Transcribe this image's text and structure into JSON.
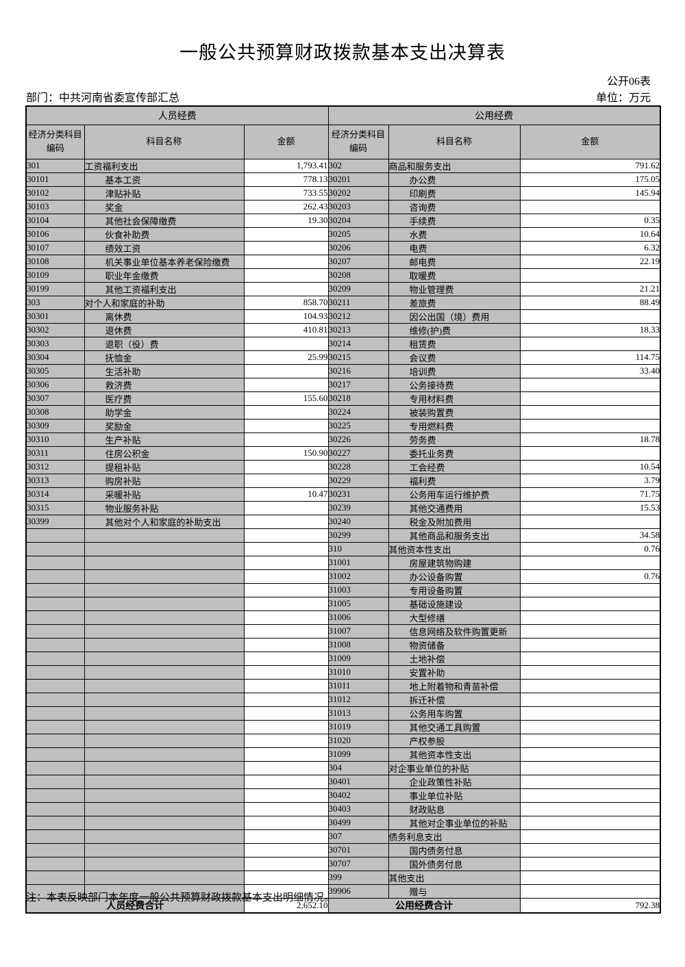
{
  "page": {
    "title": "一般公共预算财政拨款基本支出决算表",
    "form_number": "公开06表",
    "department": "部门：中共河南省委宣传部汇总",
    "unit": "单位：万元",
    "note": "注：本表反映部门本年度一般公共预算财政拨款基本支出明细情况。"
  },
  "colors": {
    "cell_gray": "#c0c0c0",
    "border": "#000000",
    "page_background": "#ffffff"
  },
  "table": {
    "groups": {
      "left": "人员经费",
      "right": "公用经费"
    },
    "headers": {
      "code_line1": "经济分类科目",
      "code_line2": "编码",
      "name": "科目名称",
      "amount": "金额"
    },
    "rows": [
      [
        "301",
        "工资福利支出",
        "1,793.41",
        "302",
        "商品和服务支出",
        "791.62"
      ],
      [
        "30101",
        "基本工资",
        "778.13",
        "30201",
        "办公费",
        "175.05"
      ],
      [
        "30102",
        "津贴补贴",
        "733.55",
        "30202",
        "印刷费",
        "145.94"
      ],
      [
        "30103",
        "奖金",
        "262.43",
        "30203",
        "咨询费",
        ""
      ],
      [
        "30104",
        "其他社会保障缴费",
        "19.30",
        "30204",
        "手续费",
        "0.35"
      ],
      [
        "30106",
        "伙食补助费",
        "",
        "30205",
        "水费",
        "10.64"
      ],
      [
        "30107",
        "绩效工资",
        "",
        "30206",
        "电费",
        "6.32"
      ],
      [
        "30108",
        "机关事业单位基本养老保险缴费",
        "",
        "30207",
        "邮电费",
        "22.19"
      ],
      [
        "30109",
        "职业年金缴费",
        "",
        "30208",
        "取暖费",
        ""
      ],
      [
        "30199",
        "其他工资福利支出",
        "",
        "30209",
        "物业管理费",
        "21.21"
      ],
      [
        "303",
        "对个人和家庭的补助",
        "858.70",
        "30211",
        "差旅费",
        "88.49"
      ],
      [
        "30301",
        "离休费",
        "104.93",
        "30212",
        "因公出国（境）费用",
        ""
      ],
      [
        "30302",
        "退休费",
        "410.81",
        "30213",
        "维修(护)费",
        "18.33"
      ],
      [
        "30303",
        "退职（役）费",
        "",
        "30214",
        "租赁费",
        ""
      ],
      [
        "30304",
        "抚恤金",
        "25.99",
        "30215",
        "会议费",
        "114.75"
      ],
      [
        "30305",
        "生活补助",
        "",
        "30216",
        "培训费",
        "33.40"
      ],
      [
        "30306",
        "救济费",
        "",
        "30217",
        "公务接待费",
        ""
      ],
      [
        "30307",
        "医疗费",
        "155.60",
        "30218",
        "专用材料费",
        ""
      ],
      [
        "30308",
        "助学金",
        "",
        "30224",
        "被装购置费",
        ""
      ],
      [
        "30309",
        "奖励金",
        "",
        "30225",
        "专用燃料费",
        ""
      ],
      [
        "30310",
        "生产补贴",
        "",
        "30226",
        "劳务费",
        "18.78"
      ],
      [
        "30311",
        "住房公积金",
        "150.90",
        "30227",
        "委托业务费",
        ""
      ],
      [
        "30312",
        "提租补贴",
        "",
        "30228",
        "工会经费",
        "10.54"
      ],
      [
        "30313",
        "购房补贴",
        "",
        "30229",
        "福利费",
        "3.79"
      ],
      [
        "30314",
        "采暖补贴",
        "10.47",
        "30231",
        "公务用车运行维护费",
        "71.75"
      ],
      [
        "30315",
        "物业服务补贴",
        "",
        "30239",
        "其他交通费用",
        "15.53"
      ],
      [
        "30399",
        "其他对个人和家庭的补助支出",
        "",
        "30240",
        "税金及附加费用",
        ""
      ],
      [
        "",
        "",
        "",
        "30299",
        "其他商品和服务支出",
        "34.58"
      ],
      [
        "",
        "",
        "",
        "310",
        "其他资本性支出",
        "0.76"
      ],
      [
        "",
        "",
        "",
        "31001",
        "房屋建筑物购建",
        ""
      ],
      [
        "",
        "",
        "",
        "31002",
        "办公设备购置",
        "0.76"
      ],
      [
        "",
        "",
        "",
        "31003",
        "专用设备购置",
        ""
      ],
      [
        "",
        "",
        "",
        "31005",
        "基础设施建设",
        ""
      ],
      [
        "",
        "",
        "",
        "31006",
        "大型修缮",
        ""
      ],
      [
        "",
        "",
        "",
        "31007",
        "信息网络及软件购置更新",
        ""
      ],
      [
        "",
        "",
        "",
        "31008",
        "物资储备",
        ""
      ],
      [
        "",
        "",
        "",
        "31009",
        "土地补偿",
        ""
      ],
      [
        "",
        "",
        "",
        "31010",
        "安置补助",
        ""
      ],
      [
        "",
        "",
        "",
        "31011",
        "地上附着物和青苗补偿",
        ""
      ],
      [
        "",
        "",
        "",
        "31012",
        "拆迁补偿",
        ""
      ],
      [
        "",
        "",
        "",
        "31013",
        "公务用车购置",
        ""
      ],
      [
        "",
        "",
        "",
        "31019",
        "其他交通工具购置",
        ""
      ],
      [
        "",
        "",
        "",
        "31020",
        "产权参股",
        ""
      ],
      [
        "",
        "",
        "",
        "31099",
        "其他资本性支出",
        ""
      ],
      [
        "",
        "",
        "",
        "304",
        "对企事业单位的补贴",
        ""
      ],
      [
        "",
        "",
        "",
        "30401",
        "企业政策性补贴",
        ""
      ],
      [
        "",
        "",
        "",
        "30402",
        "事业单位补贴",
        ""
      ],
      [
        "",
        "",
        "",
        "30403",
        "财政贴息",
        ""
      ],
      [
        "",
        "",
        "",
        "30499",
        "其他对企事业单位的补贴",
        ""
      ],
      [
        "",
        "",
        "",
        "307",
        "债务利息支出",
        ""
      ],
      [
        "",
        "",
        "",
        "30701",
        "国内债务付息",
        ""
      ],
      [
        "",
        "",
        "",
        "30707",
        "国外债务付息",
        ""
      ],
      [
        "",
        "",
        "",
        "399",
        "其他支出",
        ""
      ],
      [
        "",
        "",
        "",
        "39906",
        "赠与",
        ""
      ]
    ],
    "footer": {
      "left_label": "人员经费合计",
      "left_amount": "2,652.10",
      "right_label": "公用经费合计",
      "right_amount": "792.38"
    }
  }
}
